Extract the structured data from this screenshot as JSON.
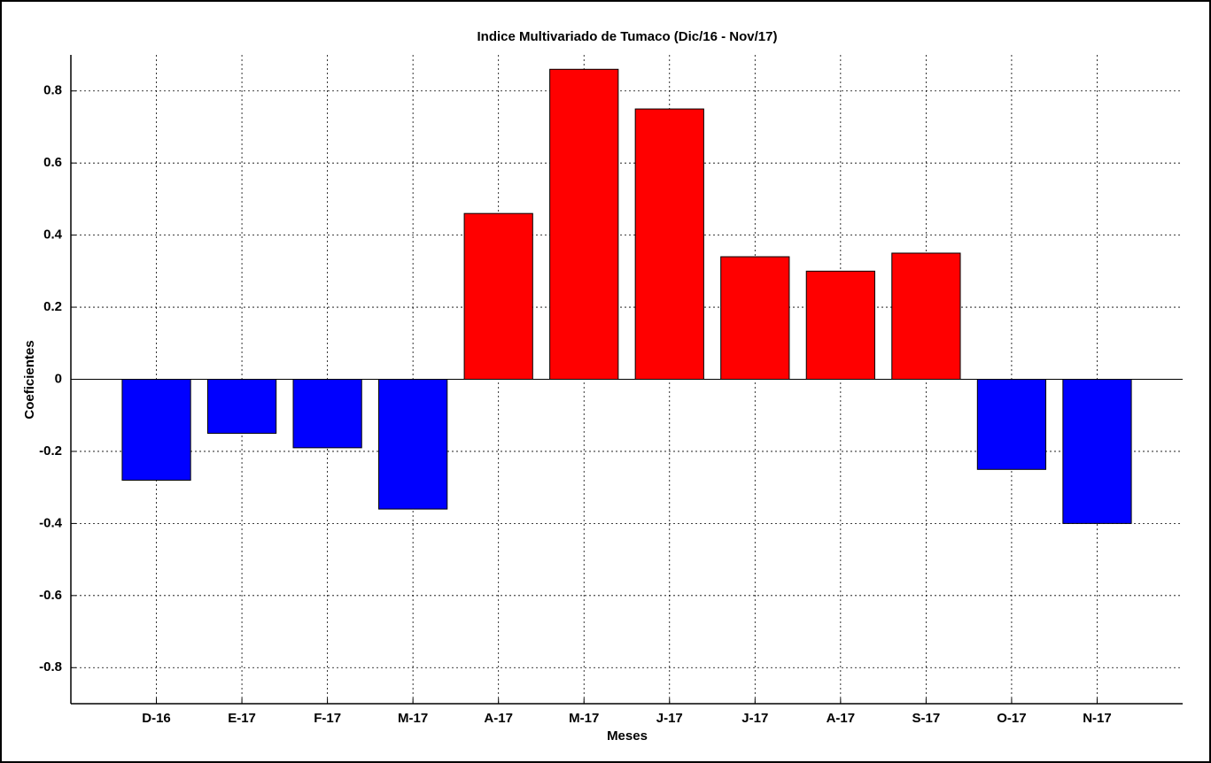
{
  "chart_data": {
    "type": "bar",
    "title": "Indice Multivariado de Tumaco (Dic/16  - Nov/17)",
    "x_label": "Meses",
    "y_label": "Coeficientes",
    "categories": [
      "D-16",
      "E-17",
      "F-17",
      "M-17",
      "A-17",
      "M-17",
      "J-17",
      "J-17",
      "A-17",
      "S-17",
      "O-17",
      "N-17"
    ],
    "values": [
      -0.28,
      -0.15,
      -0.19,
      -0.36,
      0.46,
      0.86,
      0.75,
      0.34,
      0.3,
      0.35,
      -0.25,
      -0.4
    ],
    "positive_color": "#ff0000",
    "negative_color": "#0000ff",
    "ylim": [
      -0.9,
      0.9
    ],
    "yticks": [
      -0.8,
      -0.6,
      -0.4,
      -0.2,
      0,
      0.2,
      0.4,
      0.6,
      0.8
    ],
    "grid": true
  }
}
